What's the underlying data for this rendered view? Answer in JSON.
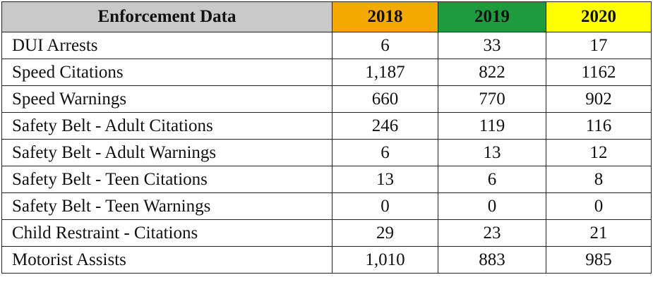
{
  "table": {
    "header": [
      "Enforcement Data",
      "2018",
      "2019",
      "2020"
    ],
    "rows": [
      [
        "DUI Arrests",
        "6",
        "33",
        "17"
      ],
      [
        "Speed Citations",
        "1,187",
        "822",
        "1162"
      ],
      [
        "Speed Warnings",
        "660",
        "770",
        "902"
      ],
      [
        "Safety Belt - Adult Citations",
        "246",
        "119",
        "116"
      ],
      [
        "Safety Belt - Adult Warnings",
        "6",
        "13",
        "12"
      ],
      [
        "Safety Belt - Teen Citations",
        "13",
        "6",
        "8"
      ],
      [
        "Safety Belt - Teen Warnings",
        "0",
        "0",
        "0"
      ],
      [
        "Child Restraint - Citations",
        "29",
        "23",
        "21"
      ],
      [
        "Motorist Assists",
        "1,010",
        "883",
        "985"
      ]
    ]
  }
}
